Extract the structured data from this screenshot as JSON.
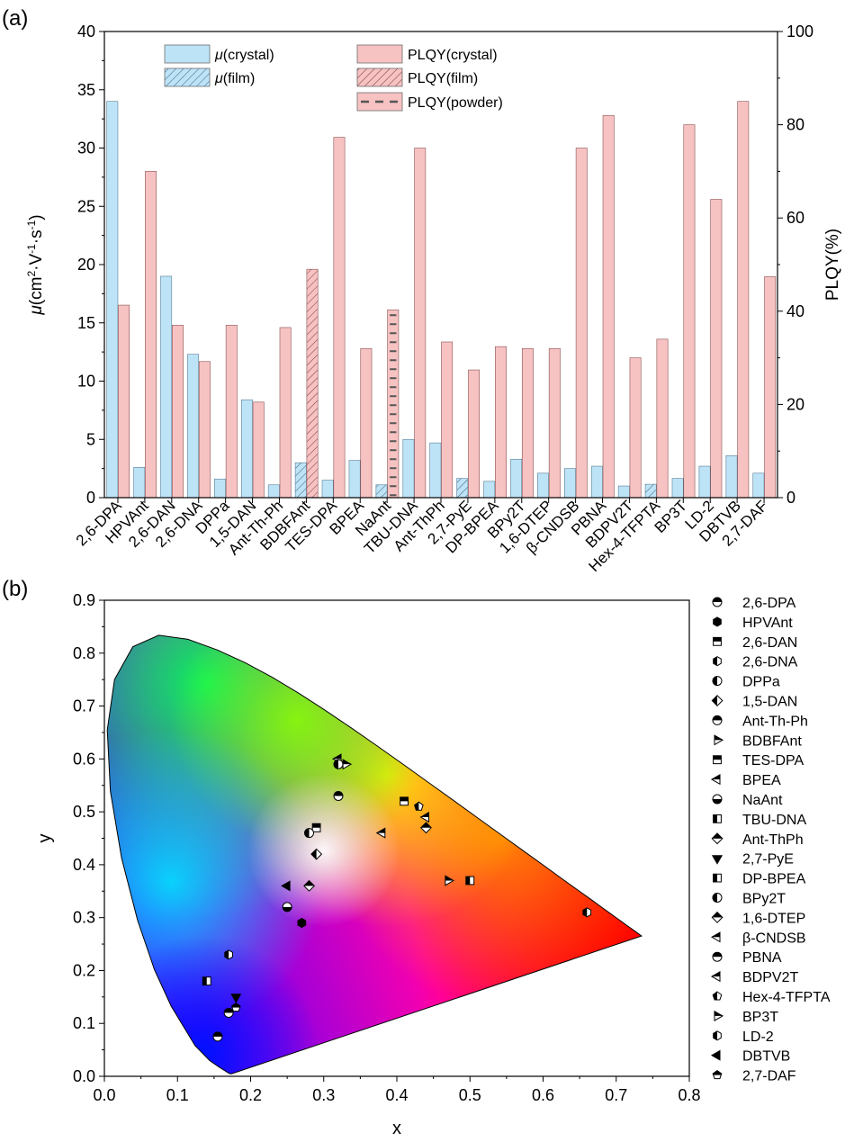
{
  "panel_labels": {
    "a": "(a)",
    "b": "(b)"
  },
  "chart_data": [
    {
      "type": "bar",
      "panel": "(a)",
      "categories": [
        "2,6-DPA",
        "HPVAnt",
        "2,6-DAN",
        "2,6-DNA",
        "DPPa",
        "1,5-DAN",
        "Ant-Th-Ph",
        "BDBFAnt",
        "TES-DPA",
        "BPEA",
        "NaAnt",
        "TBU-DNA",
        "Ant-ThPh",
        "2,7-PyE",
        "DP-BPEA",
        "BPy2T",
        "1,6-DTEP",
        "β-CNDSB",
        "PBNA",
        "BDPV2T",
        "Hex-4-TFPTA",
        "BP3T",
        "LD-2",
        "DBTVB",
        "2,7-DAF"
      ],
      "ylabel_left": {
        "sym": "μ",
        "pre": "(cm",
        "sup1": "2",
        "mid1": "·V",
        "sup2": "-1",
        "mid2": "·s",
        "sup3": "-1",
        "post": ")"
      },
      "ylabel_right": "PLQY(%)",
      "ylim_left": [
        0,
        40
      ],
      "ylim_right": [
        0,
        100
      ],
      "yticks_left": [
        "0",
        "5",
        "10",
        "15",
        "20",
        "25",
        "30",
        "35",
        "40"
      ],
      "yticks_right": [
        "0",
        "20",
        "40",
        "60",
        "80",
        "100"
      ],
      "series": [
        {
          "name": "μ(crystal)",
          "name_sym": "μ",
          "name_rest": "(crystal)",
          "axis": "left",
          "style": "solid",
          "values": [
            34.0,
            2.6,
            19.0,
            12.3,
            1.6,
            8.4,
            1.1,
            null,
            1.5,
            3.2,
            null,
            5.0,
            4.7,
            null,
            1.4,
            3.3,
            2.1,
            2.5,
            2.7,
            1.0,
            null,
            1.65,
            2.7,
            3.6,
            2.1
          ]
        },
        {
          "name": "μ(film)",
          "name_sym": "μ",
          "name_rest": "(film)",
          "axis": "left",
          "style": "hatched",
          "values": [
            null,
            null,
            null,
            null,
            null,
            null,
            null,
            3.0,
            null,
            null,
            1.1,
            null,
            null,
            1.65,
            null,
            null,
            null,
            null,
            null,
            null,
            1.15,
            null,
            null,
            null,
            null
          ]
        },
        {
          "name": "PLQY(crystal)",
          "name_sym": "",
          "name_rest": "PLQY(crystal)",
          "axis": "right",
          "style": "solid",
          "values": [
            41.3,
            70.0,
            37.0,
            29.2,
            37.0,
            20.5,
            36.5,
            null,
            77.3,
            32.0,
            null,
            75.0,
            33.4,
            27.4,
            32.4,
            32.0,
            32.0,
            75.0,
            82.0,
            30.0,
            34.0,
            80.0,
            64.0,
            85.0,
            47.4
          ]
        },
        {
          "name": "PLQY(film)",
          "name_sym": "",
          "name_rest": "PLQY(film)",
          "axis": "right",
          "style": "hatched",
          "values": [
            null,
            null,
            null,
            null,
            null,
            null,
            null,
            49.0,
            null,
            null,
            null,
            null,
            null,
            null,
            null,
            null,
            null,
            null,
            null,
            null,
            null,
            null,
            null,
            null,
            null
          ]
        },
        {
          "name": "PLQY(powder)",
          "name_sym": "",
          "name_rest": "PLQY(powder)",
          "axis": "right",
          "style": "dashed",
          "values": [
            null,
            null,
            null,
            null,
            null,
            null,
            null,
            null,
            null,
            null,
            40.3,
            null,
            null,
            null,
            null,
            null,
            null,
            null,
            null,
            null,
            null,
            null,
            null,
            null,
            null
          ]
        }
      ],
      "colors": {
        "mu": "#bde3f7",
        "plqy": "#f7c2c2"
      },
      "legend": "top-center"
    },
    {
      "type": "scatter",
      "panel": "(b)",
      "xlabel": "x",
      "ylabel": "y",
      "xlim": [
        0,
        0.8
      ],
      "ylim": [
        0,
        0.9
      ],
      "xticks": [
        "0.0",
        "0.1",
        "0.2",
        "0.3",
        "0.4",
        "0.5",
        "0.6",
        "0.7",
        "0.8"
      ],
      "yticks": [
        "0.0",
        "0.1",
        "0.2",
        "0.3",
        "0.4",
        "0.5",
        "0.6",
        "0.7",
        "0.8",
        "0.9"
      ],
      "background": "CIE 1931 chromaticity diagram",
      "legend": "right",
      "points": [
        {
          "name": "2,6-DPA",
          "marker": "circle-top",
          "x": 0.155,
          "y": 0.075
        },
        {
          "name": "HPVAnt",
          "marker": "hexagon",
          "x": 0.27,
          "y": 0.29
        },
        {
          "name": "2,6-DAN",
          "marker": "square-top",
          "x": 0.29,
          "y": 0.47
        },
        {
          "name": "2,6-DNA",
          "marker": "hexagon-left",
          "x": 0.17,
          "y": 0.23
        },
        {
          "name": "DPPa",
          "marker": "circle-left",
          "x": 0.28,
          "y": 0.46
        },
        {
          "name": "1,5-DAN",
          "marker": "diamond-left",
          "x": 0.29,
          "y": 0.42
        },
        {
          "name": "Ant-Th-Ph",
          "marker": "circle-top",
          "x": 0.32,
          "y": 0.53
        },
        {
          "name": "BDBFAnt",
          "marker": "triangle-right",
          "x": 0.47,
          "y": 0.37
        },
        {
          "name": "TES-DPA",
          "marker": "square-top",
          "x": 0.41,
          "y": 0.52
        },
        {
          "name": "BPEA",
          "marker": "triangle-left",
          "x": 0.32,
          "y": 0.6
        },
        {
          "name": "NaAnt",
          "marker": "circle-bottom",
          "x": 0.25,
          "y": 0.32
        },
        {
          "name": "TBU-DNA",
          "marker": "square-left",
          "x": 0.5,
          "y": 0.37
        },
        {
          "name": "Ant-ThPh",
          "marker": "diamond-top",
          "x": 0.28,
          "y": 0.36
        },
        {
          "name": "2,7-PyE",
          "marker": "triangle-down",
          "x": 0.18,
          "y": 0.15
        },
        {
          "name": "DP-BPEA",
          "marker": "square-left",
          "x": 0.14,
          "y": 0.18
        },
        {
          "name": "BPy2T",
          "marker": "circle-left",
          "x": 0.32,
          "y": 0.59
        },
        {
          "name": "1,6-DTEP",
          "marker": "diamond-top",
          "x": 0.44,
          "y": 0.47
        },
        {
          "name": "β-CNDSB",
          "marker": "triangle-left",
          "x": 0.44,
          "y": 0.49
        },
        {
          "name": "PBNA",
          "marker": "circle-top",
          "x": 0.17,
          "y": 0.12
        },
        {
          "name": "BDPV2T",
          "marker": "triangle-left",
          "x": 0.38,
          "y": 0.46
        },
        {
          "name": "Hex-4-TFPTA",
          "marker": "pentagon-left",
          "x": 0.43,
          "y": 0.51
        },
        {
          "name": "BP3T",
          "marker": "triangle-right",
          "x": 0.33,
          "y": 0.59
        },
        {
          "name": "LD-2",
          "marker": "hexagon-left",
          "x": 0.66,
          "y": 0.31
        },
        {
          "name": "DBTVB",
          "marker": "triangle-left-filled",
          "x": 0.25,
          "y": 0.36
        },
        {
          "name": "2,7-DAF",
          "marker": "pentagon-top",
          "x": 0.18,
          "y": 0.13
        }
      ]
    }
  ]
}
